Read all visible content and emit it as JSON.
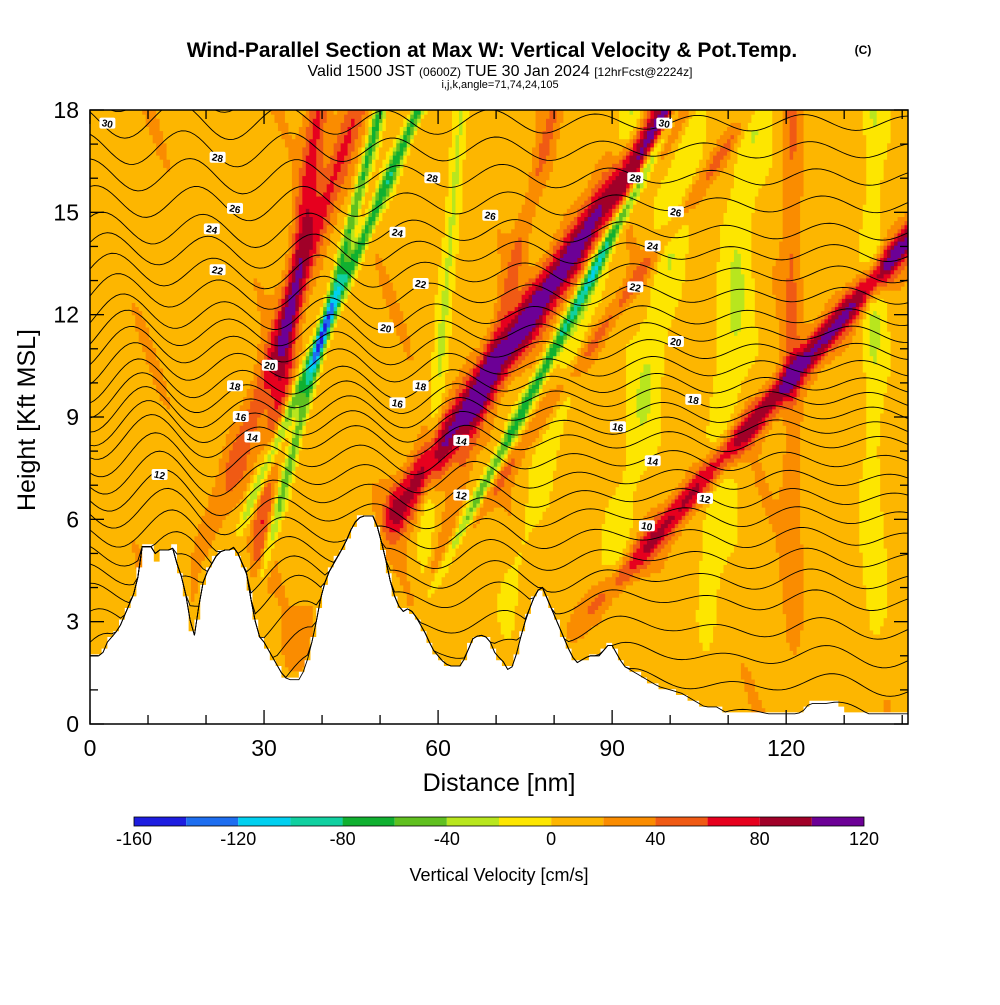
{
  "chart_data": {
    "type": "heatmap",
    "title": "Wind-Parallel Section at Max W: Vertical Velocity & Pot.Temp.",
    "copyright": "(C)",
    "subtitle_main": "Valid 1500 JST",
    "subtitle_zulu": "(0600Z)",
    "subtitle_date": "TUE 30 Jan 2024",
    "subtitle_fcst": "[12hrFcst@2224z]",
    "subtitle_indices": "i,j,k,angle=71,74,24,105",
    "xlabel": "Distance [nm]",
    "ylabel": "Height [Kft MSL]",
    "xlim": [
      0,
      141
    ],
    "ylim": [
      0,
      18
    ],
    "x_ticks": [
      0,
      30,
      60,
      90,
      120
    ],
    "x_tick_labels": [
      "0",
      "30",
      "60",
      "90",
      "120"
    ],
    "y_ticks": [
      0,
      3,
      6,
      9,
      12,
      15,
      18
    ],
    "y_tick_labels": [
      "0",
      "3",
      "6",
      "9",
      "12",
      "15",
      "18"
    ],
    "colorbar": {
      "label": "Vertical Velocity [cm/s]",
      "levels": [
        -160,
        -140,
        -120,
        -100,
        -80,
        -60,
        -40,
        -20,
        0,
        20,
        40,
        60,
        80,
        100,
        120
      ],
      "tick_labels": [
        "-160",
        "-120",
        "-80",
        "-40",
        "0",
        "40",
        "80",
        "120"
      ],
      "colors": [
        "#1d1de0",
        "#1e6ef0",
        "#00d0f0",
        "#10d0a0",
        "#10b030",
        "#60c020",
        "#b8e61e",
        "#fde600",
        "#fdb600",
        "#fa8c00",
        "#f05a14",
        "#e6001e",
        "#a00028",
        "#6c0096"
      ]
    },
    "updraft_bands": [
      {
        "x_base": 10,
        "lean": 2.0,
        "width": 2.2,
        "w_cm_s": 50
      },
      {
        "x_base": 25,
        "lean": 0.8,
        "width": 1.8,
        "w_cm_s": 55
      },
      {
        "x_base": 28,
        "lean": 4.0,
        "width": 3.5,
        "w_cm_s": 105
      },
      {
        "x_base": 42,
        "lean": 4.0,
        "width": 1.8,
        "w_cm_s": 35
      },
      {
        "x_base": 53,
        "lean": 1.5,
        "width": 1.5,
        "w_cm_s": 30
      },
      {
        "x_base": 70,
        "lean": 5.0,
        "width": 2.8,
        "w_cm_s": 95
      },
      {
        "x_base": 121,
        "lean": 0.0,
        "width": 1.6,
        "w_cm_s": 30
      }
    ],
    "downdraft_bands": [
      {
        "x_base": 11.5,
        "lean": 2.5,
        "width": 1.2,
        "w_cm_s": -85
      },
      {
        "x_base": 23,
        "lean": 1.5,
        "width": 1.0,
        "w_cm_s": -75
      },
      {
        "x_base": 47,
        "lean": 3.0,
        "width": 1.2,
        "w_cm_s": -90
      },
      {
        "x_base": 55,
        "lean": 0.5,
        "width": 1.3,
        "w_cm_s": -35
      },
      {
        "x_base": 67,
        "lean": 1.5,
        "width": 2.0,
        "w_cm_s": -30
      },
      {
        "x_base": 86,
        "lean": 1.0,
        "width": 3.0,
        "w_cm_s": -30
      },
      {
        "x_base": 105,
        "lean": 0.5,
        "width": 3.0,
        "w_cm_s": -30
      },
      {
        "x_base": 135,
        "lean": 0.0,
        "width": 2.0,
        "w_cm_s": -30
      }
    ],
    "isentropes": {
      "theta_min": 2,
      "theta_max": 31,
      "step": 1,
      "reference_height": [
        [
          2,
          0.2
        ],
        [
          6,
          3.5
        ],
        [
          10,
          6.0
        ],
        [
          14,
          8.2
        ],
        [
          18,
          9.9
        ],
        [
          22,
          11.9
        ],
        [
          26,
          14.4
        ],
        [
          30,
          17.6
        ]
      ],
      "labels": [
        {
          "theta": "30",
          "x": 3,
          "z": 17.6
        },
        {
          "theta": "30",
          "x": 99,
          "z": 17.6
        },
        {
          "theta": "28",
          "x": 22,
          "z": 16.6
        },
        {
          "theta": "28",
          "x": 59,
          "z": 16.0
        },
        {
          "theta": "28",
          "x": 94,
          "z": 16.0
        },
        {
          "theta": "26",
          "x": 25,
          "z": 15.1
        },
        {
          "theta": "26",
          "x": 69,
          "z": 14.9
        },
        {
          "theta": "26",
          "x": 101,
          "z": 15.0
        },
        {
          "theta": "24",
          "x": 21,
          "z": 14.5
        },
        {
          "theta": "24",
          "x": 53,
          "z": 14.4
        },
        {
          "theta": "24",
          "x": 97,
          "z": 14.0
        },
        {
          "theta": "22",
          "x": 22,
          "z": 13.3
        },
        {
          "theta": "22",
          "x": 57,
          "z": 12.9
        },
        {
          "theta": "22",
          "x": 94,
          "z": 12.8
        },
        {
          "theta": "20",
          "x": 51,
          "z": 11.6
        },
        {
          "theta": "20",
          "x": 31,
          "z": 10.5
        },
        {
          "theta": "20",
          "x": 101,
          "z": 11.2
        },
        {
          "theta": "18",
          "x": 25,
          "z": 9.9
        },
        {
          "theta": "18",
          "x": 57,
          "z": 9.9
        },
        {
          "theta": "18",
          "x": 104,
          "z": 9.5
        },
        {
          "theta": "16",
          "x": 26,
          "z": 9.0
        },
        {
          "theta": "16",
          "x": 53,
          "z": 9.4
        },
        {
          "theta": "16",
          "x": 91,
          "z": 8.7
        },
        {
          "theta": "14",
          "x": 28,
          "z": 8.4
        },
        {
          "theta": "14",
          "x": 64,
          "z": 8.3
        },
        {
          "theta": "14",
          "x": 97,
          "z": 7.7
        },
        {
          "theta": "12",
          "x": 12,
          "z": 7.3
        },
        {
          "theta": "12",
          "x": 64,
          "z": 6.7
        },
        {
          "theta": "12",
          "x": 106,
          "z": 6.6
        },
        {
          "theta": "10",
          "x": 96,
          "z": 5.8
        }
      ]
    },
    "terrain_kft": [
      [
        0,
        2.0
      ],
      [
        2,
        2.0
      ],
      [
        3,
        2.4
      ],
      [
        4,
        2.6
      ],
      [
        5,
        2.8
      ],
      [
        6,
        3.2
      ],
      [
        7,
        3.6
      ],
      [
        8,
        4.0
      ],
      [
        8.5,
        4.6
      ],
      [
        9,
        5.2
      ],
      [
        11,
        5.2
      ],
      [
        11.5,
        4.8
      ],
      [
        12,
        5.1
      ],
      [
        14,
        5.1
      ],
      [
        14.5,
        5.2
      ],
      [
        15,
        4.7
      ],
      [
        16,
        4.2
      ],
      [
        16.5,
        3.8
      ],
      [
        17,
        3.4
      ],
      [
        17.5,
        2.7
      ],
      [
        18,
        2.6
      ],
      [
        18.5,
        3.0
      ],
      [
        19,
        3.9
      ],
      [
        20,
        4.4
      ],
      [
        21,
        4.7
      ],
      [
        22,
        5.0
      ],
      [
        23,
        5.1
      ],
      [
        24,
        5.1
      ],
      [
        25,
        5.2
      ],
      [
        26,
        4.8
      ],
      [
        27,
        4.4
      ],
      [
        28,
        3.4
      ],
      [
        29,
        2.6
      ],
      [
        30,
        2.4
      ],
      [
        31,
        2.1
      ],
      [
        32,
        1.8
      ],
      [
        33,
        1.5
      ],
      [
        34,
        1.3
      ],
      [
        36,
        1.3
      ],
      [
        37,
        1.6
      ],
      [
        38,
        2.2
      ],
      [
        39,
        3.0
      ],
      [
        40,
        3.9
      ],
      [
        41,
        4.4
      ],
      [
        42,
        4.7
      ],
      [
        43,
        5.0
      ],
      [
        44,
        5.3
      ],
      [
        45,
        5.7
      ],
      [
        46,
        6.0
      ],
      [
        47,
        6.1
      ],
      [
        49,
        6.1
      ],
      [
        50,
        5.5
      ],
      [
        51,
        4.8
      ],
      [
        52,
        4.0
      ],
      [
        53,
        3.5
      ],
      [
        54,
        3.3
      ],
      [
        55,
        3.4
      ],
      [
        56,
        3.2
      ],
      [
        57,
        2.9
      ],
      [
        58,
        2.6
      ],
      [
        59,
        2.2
      ],
      [
        60,
        2.0
      ],
      [
        61,
        1.8
      ],
      [
        62,
        1.7
      ],
      [
        64,
        1.7
      ],
      [
        65,
        2.1
      ],
      [
        66,
        2.5
      ],
      [
        67,
        2.6
      ],
      [
        68,
        2.6
      ],
      [
        69,
        2.4
      ],
      [
        70,
        2.0
      ],
      [
        71,
        1.9
      ],
      [
        72,
        1.6
      ],
      [
        73,
        1.7
      ],
      [
        74,
        2.4
      ],
      [
        75,
        3.0
      ],
      [
        76,
        3.5
      ],
      [
        77,
        3.9
      ],
      [
        78,
        4.0
      ],
      [
        79,
        3.6
      ],
      [
        80,
        3.2
      ],
      [
        81,
        2.8
      ],
      [
        82,
        2.4
      ],
      [
        83,
        2.0
      ],
      [
        84,
        1.8
      ],
      [
        85,
        1.9
      ],
      [
        86,
        2.0
      ],
      [
        88,
        2.0
      ],
      [
        89,
        2.3
      ],
      [
        90,
        2.3
      ],
      [
        91,
        2.0
      ],
      [
        92,
        1.7
      ],
      [
        94,
        1.5
      ],
      [
        96,
        1.3
      ],
      [
        98,
        1.1
      ],
      [
        100,
        1.0
      ],
      [
        102,
        0.9
      ],
      [
        104,
        0.7
      ],
      [
        106,
        0.5
      ],
      [
        108,
        0.5
      ],
      [
        110,
        0.3
      ],
      [
        120,
        0.3
      ],
      [
        122,
        0.3
      ],
      [
        123,
        0.4
      ],
      [
        124,
        0.6
      ],
      [
        129,
        0.6
      ],
      [
        130,
        0.5
      ],
      [
        131,
        0.3
      ],
      [
        141,
        0.3
      ]
    ]
  }
}
